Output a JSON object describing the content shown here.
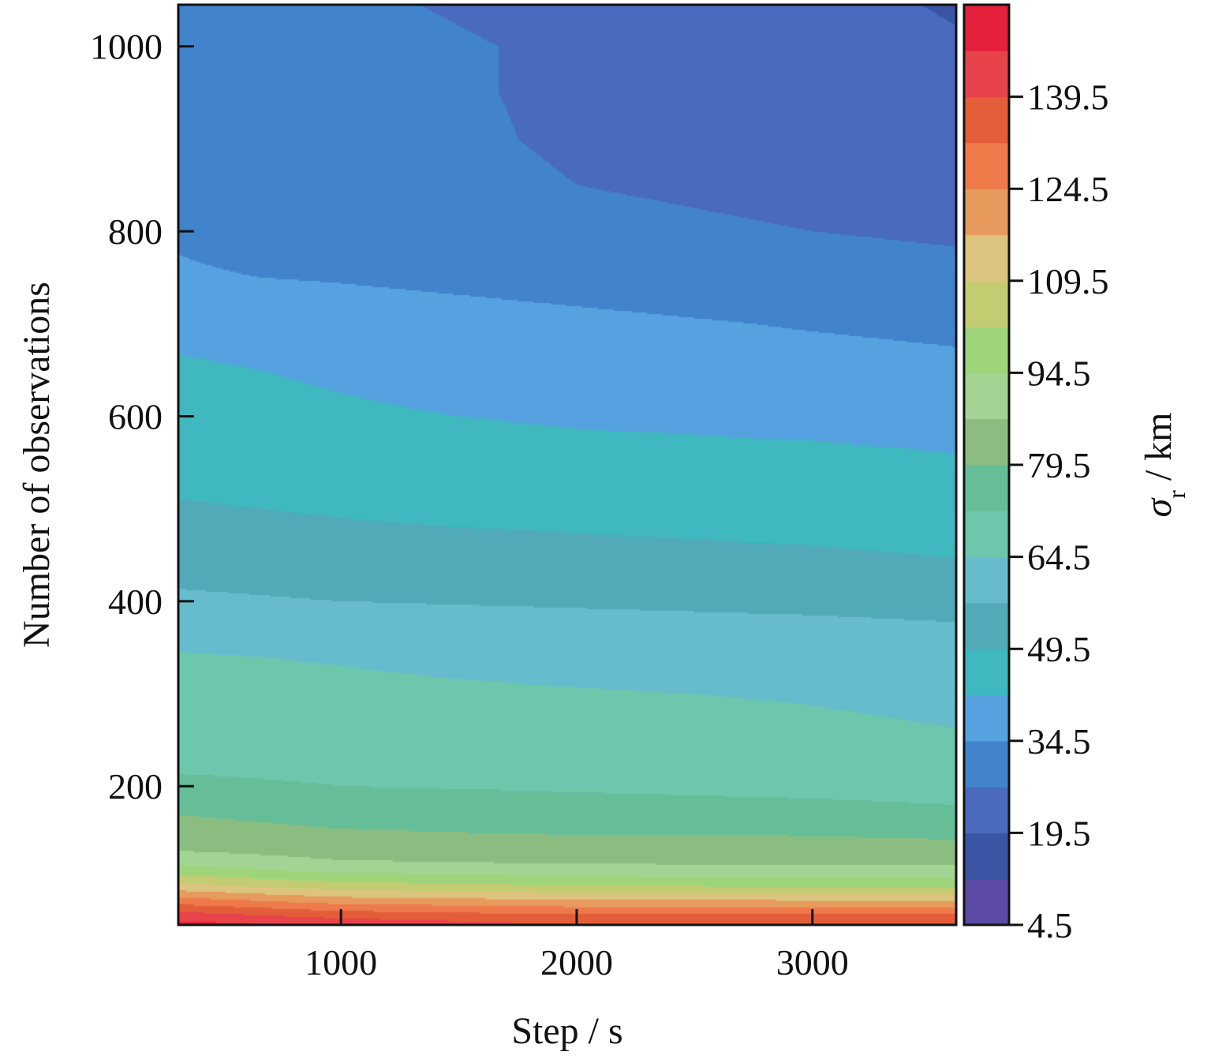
{
  "chart_data": {
    "type": "heatmap",
    "style": "filled-contour",
    "xlabel": "Step / s",
    "ylabel": "Number of observations",
    "colorbar_label_symbol": "σ",
    "colorbar_label_subscript": "r",
    "colorbar_label_unit": " / km",
    "xlim": [
      310,
      3610
    ],
    "ylim": [
      50,
      1045
    ],
    "x_ticks": [
      1000,
      2000,
      3000
    ],
    "x_tick_labels": [
      "1000",
      "2000",
      "3000"
    ],
    "y_ticks": [
      200,
      400,
      600,
      800,
      1000
    ],
    "y_tick_labels": [
      "200",
      "400",
      "600",
      "800",
      "1000"
    ],
    "colorbar": {
      "range": [
        4.5,
        154.5
      ],
      "ticks": [
        4.5,
        19.5,
        34.5,
        49.5,
        64.5,
        79.5,
        94.5,
        109.5,
        124.5,
        139.5
      ],
      "tick_labels": [
        "4.5",
        "19.5",
        "34.5",
        "49.5",
        "64.5",
        "79.5",
        "94.5",
        "109.5",
        "124.5",
        "139.5"
      ],
      "levels": [
        4.5,
        12,
        19.5,
        27,
        34.5,
        42,
        49.5,
        57,
        64.5,
        72,
        79.5,
        87,
        94.5,
        102,
        109.5,
        117,
        124.5,
        132,
        139.5,
        147,
        154.5
      ],
      "colors": [
        "#5c4aa6",
        "#3a55a4",
        "#4a6bbd",
        "#4184cc",
        "#56a2e0",
        "#3fb8bf",
        "#52a9b8",
        "#66bccc",
        "#6cc7ad",
        "#66be98",
        "#8cbd80",
        "#a2d494",
        "#9ed47a",
        "#c4cc72",
        "#dcc47e",
        "#e69a5c",
        "#ee7a4a",
        "#e35d38",
        "#e8424a",
        "#e4203a"
      ]
    },
    "field_samples": {
      "x": [
        310,
        1000,
        2000,
        3000,
        3610
      ],
      "y": [
        50,
        60,
        70,
        80,
        90,
        100,
        110,
        120,
        135,
        150,
        165,
        180,
        200,
        220,
        250,
        300,
        340,
        370,
        400,
        440,
        480,
        520,
        560,
        600,
        650,
        700,
        750,
        800,
        850,
        900,
        950,
        1000,
        1045
      ],
      "z": [
        [
          150,
          145,
          140,
          140,
          140
        ],
        [
          143,
          137,
          133,
          133,
          133
        ],
        [
          134,
          127,
          124,
          124,
          124
        ],
        [
          124,
          117,
          114,
          113,
          113
        ],
        [
          114,
          107,
          104,
          103,
          103
        ],
        [
          105,
          99,
          96,
          95,
          95
        ],
        [
          97,
          92,
          90,
          89,
          89
        ],
        [
          91,
          87,
          85,
          85,
          84
        ],
        [
          85,
          83,
          82,
          81,
          81
        ],
        [
          82,
          80,
          79,
          79,
          78
        ],
        [
          80,
          78,
          77,
          76,
          76
        ],
        [
          78,
          76,
          74,
          73,
          72
        ],
        [
          74,
          72,
          71,
          70,
          69
        ],
        [
          71,
          70,
          69,
          68,
          67
        ],
        [
          69,
          68,
          67,
          66,
          65
        ],
        [
          67,
          66,
          65,
          64,
          63
        ],
        [
          65,
          64,
          62,
          61,
          60
        ],
        [
          62,
          61,
          60,
          59,
          58
        ],
        [
          58,
          57,
          56,
          55,
          54
        ],
        [
          55,
          54,
          52,
          51,
          50
        ],
        [
          51,
          50,
          49,
          48,
          47
        ],
        [
          49,
          48,
          46,
          45,
          44
        ],
        [
          47,
          46,
          44,
          43,
          42
        ],
        [
          45,
          43,
          41,
          40,
          39
        ],
        [
          43,
          41,
          38,
          37,
          36
        ],
        [
          40,
          38,
          36,
          34,
          33
        ],
        [
          35,
          34,
          32,
          30,
          29
        ],
        [
          34,
          32,
          29,
          27,
          26
        ],
        [
          33,
          31,
          27,
          25,
          24
        ],
        [
          32,
          30,
          26,
          24,
          22
        ],
        [
          31,
          29,
          26,
          23,
          21
        ],
        [
          31,
          29,
          26,
          22,
          20
        ],
        [
          31,
          28,
          25,
          21,
          19
        ]
      ]
    }
  }
}
